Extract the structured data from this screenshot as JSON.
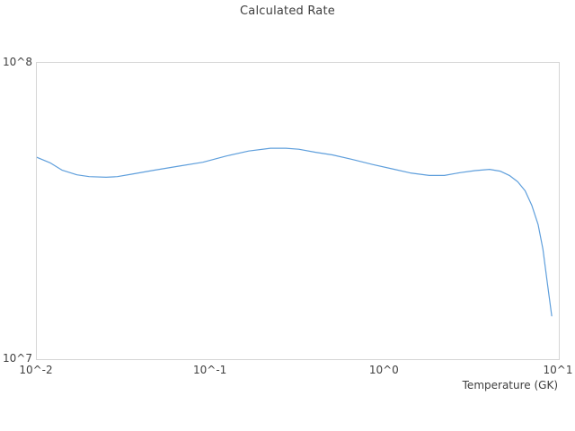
{
  "chart_data": {
    "type": "line",
    "title": "Calculated Rate",
    "xlabel": "Temperature (GK)",
    "ylabel": "",
    "x_scale": "log",
    "y_scale": "log",
    "xlog_range": [
      -2,
      1
    ],
    "ylog_range": [
      7,
      8
    ],
    "grid": false,
    "legend": "none",
    "line_color": "#5f9fdc",
    "axis_text_color": "#3f3f3f",
    "plot_border_color": "#d6d6d6",
    "x_ticks": [
      {
        "value": 0.01,
        "label": "10^-2"
      },
      {
        "value": 0.1,
        "label": "10^-1"
      },
      {
        "value": 1,
        "label": "10^0"
      },
      {
        "value": 10,
        "label": "10^1"
      }
    ],
    "y_ticks": [
      {
        "value": 10000000,
        "label": "10^7"
      },
      {
        "value": 100000000,
        "label": "10^8"
      }
    ],
    "series": [
      {
        "name": "Calculated Rate",
        "points": [
          [
            0.01,
            48000000
          ],
          [
            0.012,
            45900000
          ],
          [
            0.014,
            43400000
          ],
          [
            0.017,
            41900000
          ],
          [
            0.02,
            41300000
          ],
          [
            0.025,
            41100000
          ],
          [
            0.029,
            41300000
          ],
          [
            0.035,
            42100000
          ],
          [
            0.047,
            43400000
          ],
          [
            0.065,
            44800000
          ],
          [
            0.09,
            46200000
          ],
          [
            0.123,
            48500000
          ],
          [
            0.165,
            50400000
          ],
          [
            0.22,
            51500000
          ],
          [
            0.27,
            51500000
          ],
          [
            0.32,
            51100000
          ],
          [
            0.4,
            49900000
          ],
          [
            0.5,
            48900000
          ],
          [
            0.65,
            47200000
          ],
          [
            0.85,
            45400000
          ],
          [
            1.1,
            43900000
          ],
          [
            1.4,
            42500000
          ],
          [
            1.8,
            41700000
          ],
          [
            2.2,
            41700000
          ],
          [
            2.7,
            42600000
          ],
          [
            3.3,
            43300000
          ],
          [
            4.0,
            43700000
          ],
          [
            4.6,
            43100000
          ],
          [
            5.2,
            41700000
          ],
          [
            5.8,
            39700000
          ],
          [
            6.4,
            37000000
          ],
          [
            7.0,
            33000000
          ],
          [
            7.6,
            28500000
          ],
          [
            8.1,
            23500000
          ],
          [
            8.6,
            18000000
          ],
          [
            9.1,
            14000000
          ]
        ]
      }
    ]
  }
}
